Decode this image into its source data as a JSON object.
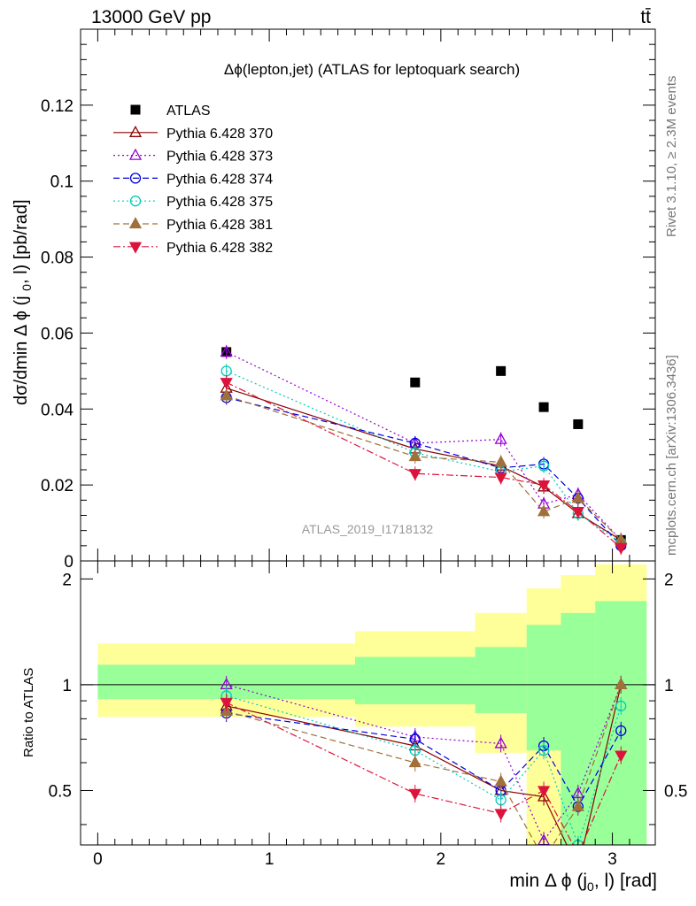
{
  "header": {
    "left": "13000 GeV pp",
    "right": "tt̄"
  },
  "side_text": {
    "rivet": "Rivet 3.1.10, ≥ 2.3M events",
    "mcplots": "mcplots.cern.ch [arXiv:1306.3436]"
  },
  "watermark": "ATLAS_2019_I1718132",
  "chart_data": [
    {
      "type": "scatter",
      "panel": "main",
      "title": "Δϕ(lepton,jet) (ATLAS for leptoquark search)",
      "ylabel": "dσ/dmin Δ ϕ (j0, l) [pb/rad]",
      "xlim": [
        -0.1,
        3.25
      ],
      "ylim": [
        0,
        0.14
      ],
      "yticks": [
        0,
        0.02,
        0.04,
        0.06,
        0.08,
        0.1,
        0.12
      ],
      "ytick_labels": [
        "0",
        "0.02",
        "0.04",
        "0.06",
        "0.08",
        "0.1",
        "0.12"
      ],
      "legend_position": "top-left",
      "series": [
        {
          "name": "ATLAS",
          "color": "#000000",
          "marker": "square",
          "line": "none",
          "x": [
            0.75,
            1.85,
            2.35,
            2.6,
            2.8,
            3.05
          ],
          "y": [
            0.055,
            0.047,
            0.05,
            0.0405,
            0.036,
            0.0055
          ]
        },
        {
          "name": "Pythia 6.428 370",
          "color": "#8b0000",
          "marker": "triangle-up-open",
          "line": "solid",
          "x": [
            0.75,
            1.85,
            2.35,
            2.6,
            2.8,
            3.05
          ],
          "y": [
            0.0455,
            0.0295,
            0.025,
            0.0195,
            0.0125,
            0.0055
          ]
        },
        {
          "name": "Pythia 6.428 373",
          "color": "#9400d3",
          "marker": "triangle-up-open",
          "line": "dotted",
          "x": [
            0.75,
            1.85,
            2.35,
            2.6,
            2.8,
            3.05
          ],
          "y": [
            0.055,
            0.031,
            0.032,
            0.015,
            0.0175,
            0.0055
          ]
        },
        {
          "name": "Pythia 6.428 374",
          "color": "#0000dd",
          "marker": "circle-open",
          "line": "dashed",
          "x": [
            0.75,
            1.85,
            2.35,
            2.6,
            2.8,
            3.05
          ],
          "y": [
            0.043,
            0.031,
            0.0245,
            0.0255,
            0.0165,
            0.004
          ]
        },
        {
          "name": "Pythia 6.428 375",
          "color": "#00ccbb",
          "marker": "circle-open",
          "line": "dotted",
          "x": [
            0.75,
            1.85,
            2.35,
            2.6,
            2.8,
            3.05
          ],
          "y": [
            0.05,
            0.0285,
            0.0235,
            0.025,
            0.0125,
            0.0048
          ]
        },
        {
          "name": "Pythia 6.428 381",
          "color": "#a0703a",
          "marker": "triangle-up-filled",
          "line": "dashed",
          "x": [
            0.75,
            1.85,
            2.35,
            2.6,
            2.8,
            3.05
          ],
          "y": [
            0.0435,
            0.0275,
            0.026,
            0.013,
            0.0165,
            0.0055
          ]
        },
        {
          "name": "Pythia 6.428 382",
          "color": "#dc143c",
          "marker": "triangle-down-filled",
          "line": "dashdot",
          "x": [
            0.75,
            1.85,
            2.35,
            2.6,
            2.8,
            3.05
          ],
          "y": [
            0.047,
            0.023,
            0.022,
            0.02,
            0.013,
            0.0035
          ]
        }
      ]
    },
    {
      "type": "scatter",
      "panel": "ratio",
      "ylabel": "Ratio to ATLAS",
      "xlabel": "min Δ ϕ (j0, l) [rad]",
      "xlim": [
        -0.1,
        3.25
      ],
      "ylim": [
        0.35,
        2.25
      ],
      "xticks": [
        0,
        1,
        2,
        3
      ],
      "xtick_labels": [
        "0",
        "1",
        "2",
        "3"
      ],
      "yticks": [
        0.5,
        1,
        2
      ],
      "ytick_labels": [
        "0.5",
        "1",
        "2"
      ],
      "bins": [
        0,
        1.5,
        2.2,
        2.5,
        2.7,
        2.9,
        3.2
      ],
      "band_inner": [
        [
          0.91,
          1.14
        ],
        [
          0.88,
          1.2
        ],
        [
          0.83,
          1.28
        ],
        [
          0.65,
          1.48
        ],
        [
          0.33,
          1.6
        ],
        [
          0.33,
          1.73
        ]
      ],
      "band_outer": [
        [
          0.81,
          1.31
        ],
        [
          0.76,
          1.42
        ],
        [
          0.64,
          1.6
        ],
        [
          0.33,
          1.88
        ],
        [
          0.33,
          2.05
        ],
        [
          0.33,
          2.2
        ]
      ],
      "band_colors": {
        "inner": "#99ff99",
        "outer": "#ffff99"
      },
      "series": [
        {
          "name": "Pythia 6.428 370",
          "color": "#8b0000",
          "marker": "triangle-up-open",
          "line": "solid",
          "x": [
            0.75,
            1.85,
            2.35,
            2.6,
            2.8,
            3.05
          ],
          "y": [
            0.87,
            0.67,
            0.5,
            0.48,
            0.3,
            1.0
          ]
        },
        {
          "name": "Pythia 6.428 373",
          "color": "#9400d3",
          "marker": "triangle-up-open",
          "line": "dotted",
          "x": [
            0.75,
            1.85,
            2.35,
            2.6,
            2.8,
            3.05
          ],
          "y": [
            1.0,
            0.71,
            0.68,
            0.36,
            0.49,
            1.0
          ]
        },
        {
          "name": "Pythia 6.428 374",
          "color": "#0000dd",
          "marker": "circle-open",
          "line": "dashed",
          "x": [
            0.75,
            1.85,
            2.35,
            2.6,
            2.8,
            3.05
          ],
          "y": [
            0.83,
            0.7,
            0.5,
            0.67,
            0.45,
            0.74
          ]
        },
        {
          "name": "Pythia 6.428 375",
          "color": "#00ccbb",
          "marker": "circle-open",
          "line": "dotted",
          "x": [
            0.75,
            1.85,
            2.35,
            2.6,
            2.8,
            3.05
          ],
          "y": [
            0.93,
            0.65,
            0.47,
            0.65,
            0.35,
            0.87
          ]
        },
        {
          "name": "Pythia 6.428 381",
          "color": "#a0703a",
          "marker": "triangle-up-filled",
          "line": "dashed",
          "x": [
            0.75,
            1.85,
            2.35,
            2.6,
            2.8,
            3.05
          ],
          "y": [
            0.84,
            0.6,
            0.53,
            0.32,
            0.45,
            1.0
          ]
        },
        {
          "name": "Pythia 6.428 382",
          "color": "#dc143c",
          "marker": "triangle-down-filled",
          "line": "dashdot",
          "x": [
            0.75,
            1.85,
            2.35,
            2.6,
            2.8,
            3.05
          ],
          "y": [
            0.89,
            0.49,
            0.43,
            0.5,
            0.33,
            0.63
          ]
        }
      ]
    }
  ]
}
